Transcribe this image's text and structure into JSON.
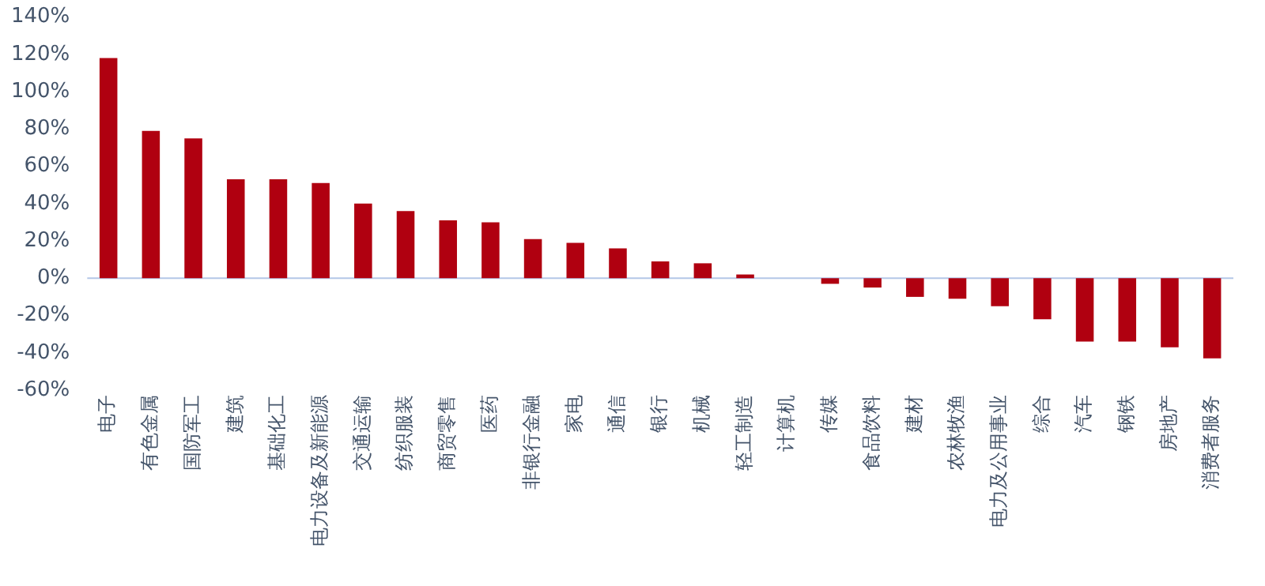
{
  "chart_data": {
    "type": "bar",
    "categories": [
      "电子",
      "有色金属",
      "国防军工",
      "建筑",
      "基础化工",
      "电力设备及新能源",
      "交通运输",
      "纺织服装",
      "商贸零售",
      "医药",
      "非银行金融",
      "家电",
      "通信",
      "银行",
      "机械",
      "轻工制造",
      "计算机",
      "传媒",
      "食品饮料",
      "建材",
      "农林牧渔",
      "电力及公用事业",
      "综合",
      "汽车",
      "钢铁",
      "房地产",
      "消费者服务"
    ],
    "values": [
      118,
      79,
      75,
      53,
      53,
      51,
      40,
      36,
      31,
      30,
      21,
      19,
      16,
      9,
      8,
      2,
      0,
      -3,
      -5,
      -10,
      -11,
      -15,
      -22,
      -34,
      -34,
      -37,
      -43
    ],
    "color": "#b00010",
    "ylim": [
      -60,
      140
    ],
    "yticks": [
      {
        "value": -60,
        "label": "-60%"
      },
      {
        "value": -40,
        "label": "-40%"
      },
      {
        "value": -20,
        "label": "-20%"
      },
      {
        "value": 0,
        "label": "0%"
      },
      {
        "value": 20,
        "label": "20%"
      },
      {
        "value": 40,
        "label": "40%"
      },
      {
        "value": 60,
        "label": "60%"
      },
      {
        "value": 80,
        "label": "80%"
      },
      {
        "value": 100,
        "label": "100%"
      },
      {
        "value": 120,
        "label": "120%"
      },
      {
        "value": 140,
        "label": "140%"
      }
    ],
    "ref_lines": [
      {
        "axis": "y",
        "value": 0,
        "color": "#b4c7e7"
      }
    ],
    "grid": false
  }
}
